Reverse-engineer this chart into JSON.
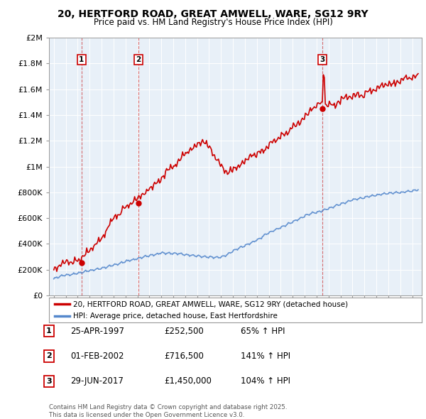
{
  "title": "20, HERTFORD ROAD, GREAT AMWELL, WARE, SG12 9RY",
  "subtitle": "Price paid vs. HM Land Registry's House Price Index (HPI)",
  "background_color": "#ffffff",
  "plot_bg_color": "#e8f0f8",
  "sale_dates_num": [
    1997.32,
    2002.08,
    2017.49
  ],
  "sale_prices": [
    252500,
    716500,
    1450000
  ],
  "sale_labels": [
    "1",
    "2",
    "3"
  ],
  "legend_line1": "20, HERTFORD ROAD, GREAT AMWELL, WARE, SG12 9RY (detached house)",
  "legend_line2": "HPI: Average price, detached house, East Hertfordshire",
  "table_entries": [
    {
      "label": "1",
      "date": "25-APR-1997",
      "price": "£252,500",
      "hpi": "65% ↑ HPI"
    },
    {
      "label": "2",
      "date": "01-FEB-2002",
      "price": "£716,500",
      "hpi": "141% ↑ HPI"
    },
    {
      "label": "3",
      "date": "29-JUN-2017",
      "price": "£1,450,000",
      "hpi": "104% ↑ HPI"
    }
  ],
  "footer": "Contains HM Land Registry data © Crown copyright and database right 2025.\nThis data is licensed under the Open Government Licence v3.0.",
  "ylim": [
    0,
    2000000
  ],
  "yticks": [
    0,
    200000,
    400000,
    600000,
    800000,
    1000000,
    1200000,
    1400000,
    1600000,
    1800000,
    2000000
  ],
  "ytick_labels": [
    "£0",
    "£200K",
    "£400K",
    "£600K",
    "£800K",
    "£1M",
    "£1.2M",
    "£1.4M",
    "£1.6M",
    "£1.8M",
    "£2M"
  ],
  "xmin": 1994.6,
  "xmax": 2025.8,
  "property_line_color": "#cc0000",
  "hpi_line_color": "#5588cc",
  "dashed_line_color": "#cc3333"
}
